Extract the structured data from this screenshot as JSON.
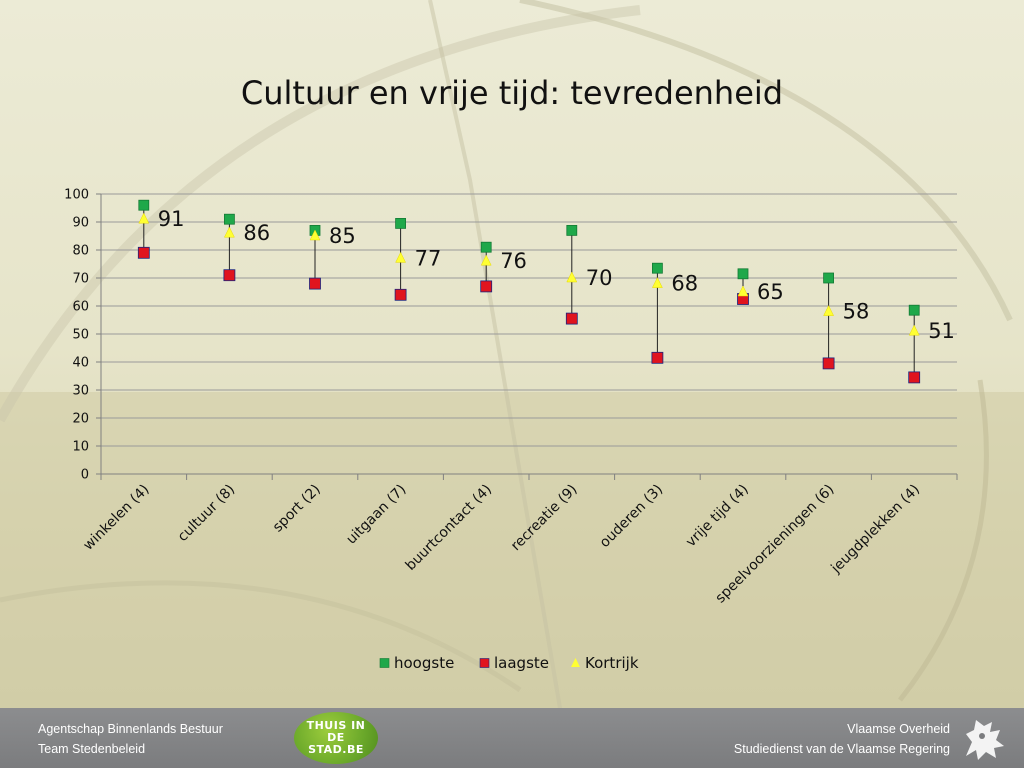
{
  "title": "Cultuur en vrije tijd: tevredenheid",
  "footer": {
    "left_line1": "Agentschap Binnenlands Bestuur",
    "left_line2": "Team Stedenbeleid",
    "logo_text": "THUIS IN DE STAD.BE",
    "right_line1": "Vlaamse Overheid",
    "right_line2": "Studiedienst van de Vlaamse Regering"
  },
  "colors": {
    "hoogste": "#1fa84a",
    "laagste": "#e0141e",
    "kortrijk": "#ffff33"
  },
  "chart_data": {
    "type": "scatter",
    "title": "Cultuur en vrije tijd: tevredenheid",
    "categories": [
      "winkelen (4)",
      "cultuur (8)",
      "sport (2)",
      "uitgaan (7)",
      "buurtcontact (4)",
      "recreatie (9)",
      "ouderen (3)",
      "vrije tijd (4)",
      "speelvoorzieningen (6)",
      "jeugdplekken (4)"
    ],
    "series": [
      {
        "name": "hoogste",
        "marker": "square",
        "values": [
          96,
          91,
          87,
          89.5,
          81,
          87,
          73.5,
          71.5,
          70,
          58.5
        ]
      },
      {
        "name": "laagste",
        "marker": "square",
        "values": [
          79,
          71,
          68,
          64,
          67,
          55.5,
          41.5,
          62.5,
          39.5,
          34.5
        ]
      },
      {
        "name": "Kortrijk",
        "marker": "triangle",
        "values": [
          91,
          86,
          85,
          77,
          76,
          70,
          68,
          65,
          58,
          51
        ]
      }
    ],
    "data_labels": [
      "91",
      "86",
      "85",
      "77",
      "76",
      "70",
      "68",
      "65",
      "58",
      "51"
    ],
    "ylim": [
      0,
      100
    ],
    "yticks": [
      0,
      10,
      20,
      30,
      40,
      50,
      60,
      70,
      80,
      90,
      100
    ],
    "ytick_labels": [
      "0",
      "10",
      "20",
      "30",
      "40",
      "50",
      "60",
      "70",
      "80",
      "90",
      "100"
    ],
    "grid": true,
    "legend": "bottom",
    "high_low_lines": true
  }
}
